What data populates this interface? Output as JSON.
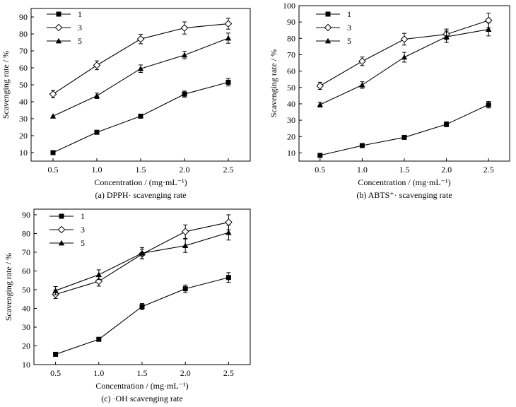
{
  "chart_data": [
    {
      "type": "line",
      "caption": "(a) DPPH· scavenging rate",
      "xlabel": "Concentration / (mg·mL⁻¹)",
      "ylabel": "Scavenging rate / %",
      "x": [
        0.5,
        1.0,
        1.5,
        2.0,
        2.5
      ],
      "x_tick_labels": [
        "0.5",
        "1.0",
        "1.5",
        "2.0",
        "2.5"
      ],
      "y_ticks": [
        10,
        20,
        30,
        40,
        50,
        60,
        70,
        80,
        90
      ],
      "ylim": [
        5,
        95
      ],
      "legend_position": "top-left",
      "series": [
        {
          "name": "1",
          "marker": "square",
          "values": [
            10,
            22,
            31.5,
            44.5,
            51.5
          ],
          "errors": [
            0,
            0,
            0,
            1.8,
            2.2
          ]
        },
        {
          "name": "3",
          "marker": "diamond",
          "values": [
            44.5,
            61.5,
            77,
            83.5,
            86
          ],
          "errors": [
            2.2,
            2.6,
            2.8,
            3.6,
            3.2
          ]
        },
        {
          "name": "5",
          "marker": "triangle",
          "values": [
            31.5,
            43.5,
            59.5,
            67.5,
            77.5
          ],
          "errors": [
            0,
            1.6,
            2.2,
            2.2,
            3
          ]
        }
      ]
    },
    {
      "type": "line",
      "caption": "(b) ABTS⁺· scavenging rate",
      "xlabel": "Concentration / (mg·mL⁻¹)",
      "ylabel": "Scavenging rate / %",
      "x": [
        0.5,
        1.0,
        1.5,
        2.0,
        2.5
      ],
      "x_tick_labels": [
        "0.5",
        "1.0",
        "1.5",
        "2.0",
        "2.5"
      ],
      "y_ticks": [
        10,
        20,
        30,
        40,
        50,
        60,
        70,
        80,
        90,
        100
      ],
      "ylim": [
        5,
        100
      ],
      "legend_position": "top-left",
      "series": [
        {
          "name": "1",
          "marker": "square",
          "values": [
            8.5,
            14.5,
            19.5,
            27.5,
            39.5
          ],
          "errors": [
            0,
            0,
            0,
            1.5,
            2
          ]
        },
        {
          "name": "3",
          "marker": "diamond",
          "values": [
            51,
            66,
            79.5,
            82.5,
            91
          ],
          "errors": [
            2.2,
            2.6,
            3.6,
            3.2,
            4.4
          ]
        },
        {
          "name": "5",
          "marker": "triangle",
          "values": [
            39.5,
            51.5,
            68.5,
            81,
            85.5
          ],
          "errors": [
            1.5,
            2,
            3,
            3.5,
            4
          ]
        }
      ]
    },
    {
      "type": "line",
      "caption": "(c) ·OH scavenging rate",
      "xlabel": "Concentration / (mg·mL⁻¹)",
      "ylabel": "Scavenging rate / %",
      "x": [
        0.5,
        1.0,
        1.5,
        2.0,
        2.5
      ],
      "x_tick_labels": [
        "0.5",
        "1.0",
        "1.5",
        "2.0",
        "2.5"
      ],
      "y_ticks": [
        10,
        20,
        30,
        40,
        50,
        60,
        70,
        80,
        90
      ],
      "ylim": [
        10,
        93
      ],
      "legend_position": "top-left",
      "series": [
        {
          "name": "1",
          "marker": "square",
          "values": [
            15.5,
            23.5,
            41,
            50.5,
            56.5
          ],
          "errors": [
            0,
            0,
            1.6,
            2,
            2.6
          ]
        },
        {
          "name": "3",
          "marker": "diamond",
          "values": [
            47.5,
            54.5,
            69,
            81,
            86
          ],
          "errors": [
            2.2,
            2.6,
            2.6,
            3.6,
            4
          ]
        },
        {
          "name": "5",
          "marker": "triangle",
          "values": [
            49.5,
            58,
            69.5,
            73.5,
            80.5
          ],
          "errors": [
            2.2,
            2.6,
            3,
            3.6,
            4
          ]
        }
      ]
    }
  ]
}
